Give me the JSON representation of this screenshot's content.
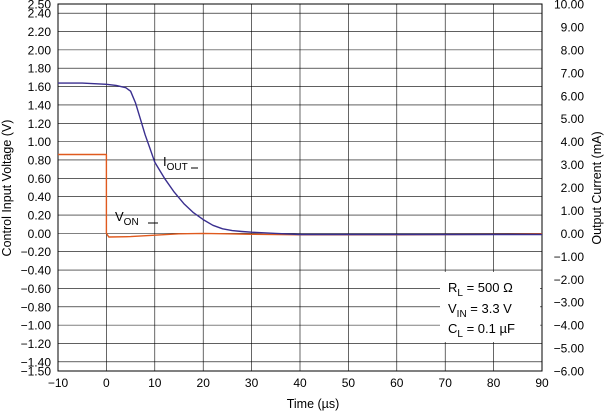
{
  "chart_data": {
    "type": "line",
    "xlabel": "Time (µs)",
    "ylabel_left": "Control Input Voltage (V)",
    "ylabel_right": "Output Current (mA)",
    "xlim": [
      -10,
      90
    ],
    "ylim_left": [
      -1.5,
      2.5
    ],
    "ylim_right": [
      -6.0,
      10.0
    ],
    "x_ticks": [
      "−10",
      "0",
      "10",
      "20",
      "30",
      "40",
      "50",
      "60",
      "70",
      "80",
      "90"
    ],
    "y_left_ticks": [
      "2.50",
      "2.40",
      "2.20",
      "2.00",
      "1.80",
      "1.60",
      "1.40",
      "1.20",
      "1.00",
      "0.80",
      "0.60",
      "0.40",
      "0.20",
      "0.00",
      "−0.20",
      "−0.40",
      "−0.60",
      "−0.80",
      "−1.00",
      "−1.20",
      "−1.40",
      "−1.50"
    ],
    "y_right_ticks": [
      "10.00",
      "9.00",
      "8.00",
      "7.00",
      "6.00",
      "5.00",
      "4.00",
      "3.00",
      "2.00",
      "1.00",
      "0.00",
      "−1.00",
      "−2.00",
      "−3.00",
      "−4.00",
      "−5.00",
      "−6.00"
    ],
    "grid": true,
    "series": [
      {
        "name": "VON",
        "axis": "left",
        "color": "#e05a1e",
        "x": [
          -10,
          -0.01,
          0,
          0.5,
          5,
          10,
          15,
          20,
          25,
          30,
          40,
          60,
          80,
          90
        ],
        "y": [
          0.86,
          0.86,
          0.0,
          -0.04,
          -0.035,
          -0.02,
          -0.005,
          0.0,
          -0.005,
          -0.01,
          -0.015,
          -0.015,
          -0.01,
          -0.005
        ]
      },
      {
        "name": "IOUT",
        "axis": "right",
        "color": "#3a2f8f",
        "x": [
          -10,
          -5,
          0,
          2,
          4,
          5,
          6,
          7,
          8,
          9,
          10,
          12,
          14,
          16,
          18,
          20,
          22,
          24,
          26,
          28,
          30,
          35,
          40,
          50,
          60,
          70,
          80,
          90
        ],
        "y": [
          6.55,
          6.55,
          6.5,
          6.45,
          6.35,
          6.2,
          5.7,
          5.0,
          4.3,
          3.7,
          3.1,
          2.4,
          1.8,
          1.3,
          0.9,
          0.6,
          0.35,
          0.2,
          0.12,
          0.08,
          0.05,
          0.0,
          -0.05,
          -0.05,
          -0.05,
          -0.05,
          -0.05,
          -0.05
        ]
      }
    ],
    "labels": {
      "iout_main": "I",
      "iout_sub": "OUT",
      "von_main": "V",
      "von_sub": "ON"
    },
    "annotation": {
      "rl_main": "R",
      "rl_sub": "L",
      "rl_value": " = 500 Ω",
      "vin_main": "V",
      "vin_sub": "IN",
      "vin_value": " = 3.3 V",
      "cl_main": "C",
      "cl_sub": "L",
      "cl_value": " = 0.1 µF"
    }
  }
}
